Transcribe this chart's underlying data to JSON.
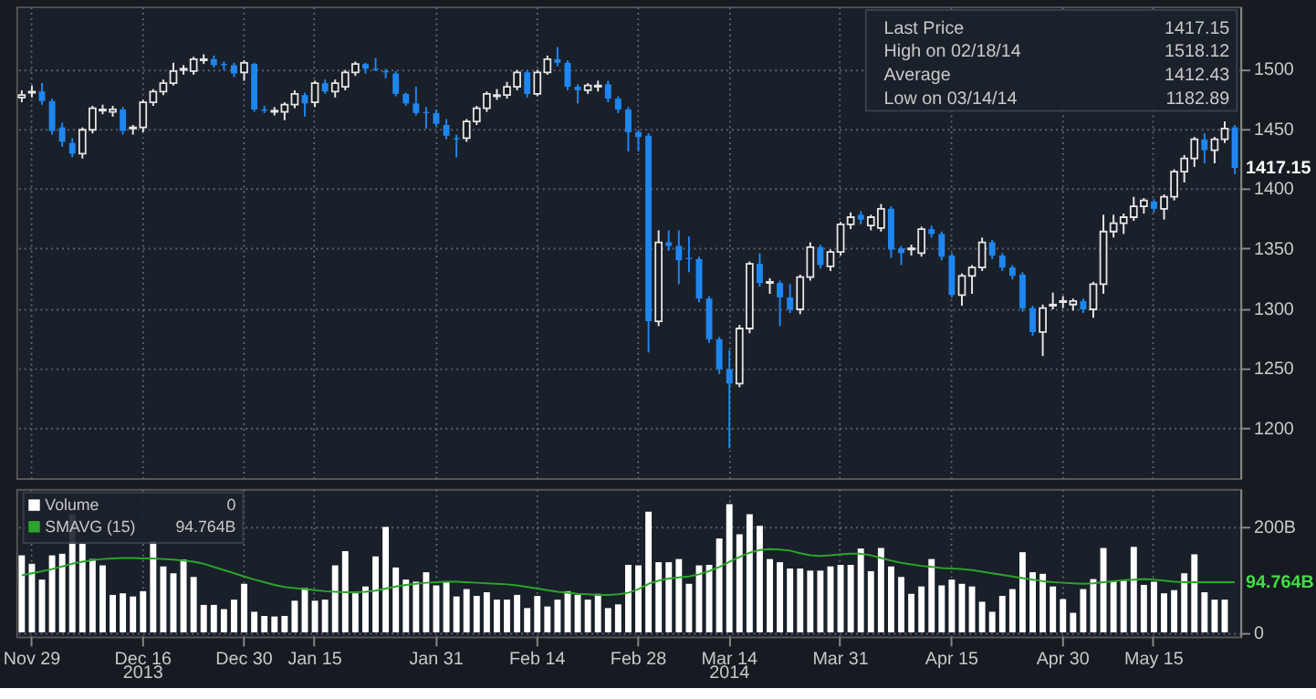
{
  "chart_data": [
    {
      "type": "candlestick",
      "tick_labels": "y",
      "grid": true,
      "colors": [
        "#e6e6e6",
        "#e6e6e6",
        "#1f86f0",
        "#1f86f0",
        "#1f86f0",
        "#1f86f0",
        "#e6e6e6",
        "#e6e6e6",
        "#e6e6e6",
        "#e6e6e6",
        "#1f86f0",
        "#e6e6e6",
        "#e6e6e6",
        "#e6e6e6",
        "#e6e6e6",
        "#e6e6e6",
        "#e6e6e6",
        "#e6e6e6",
        "#e6e6e6",
        "#1f86f0",
        "#1f86f0",
        "#1f86f0",
        "#e6e6e6",
        "#1f86f0",
        "#1f86f0",
        "#e6e6e6",
        "#e6e6e6",
        "#e6e6e6",
        "#1f86f0",
        "#e6e6e6",
        "#1f86f0",
        "#e6e6e6",
        "#e6e6e6",
        "#e6e6e6",
        "#1f86f0",
        "#1f86f0",
        "#1f86f0",
        "#1f86f0",
        "#1f86f0",
        "#1f86f0",
        "#1f86f0",
        "#1f86f0",
        "#1f86f0",
        "#1f86f0",
        "#e6e6e6",
        "#e6e6e6",
        "#e6e6e6",
        "#e6e6e6",
        "#e6e6e6",
        "#e6e6e6",
        "#1f86f0",
        "#e6e6e6",
        "#e6e6e6",
        "#1f86f0",
        "#1f86f0",
        "#1f86f0",
        "#e6e6e6",
        "#e6e6e6",
        "#1f86f0",
        "#1f86f0",
        "#1f86f0",
        "#1f86f0",
        "#1f86f0",
        "#e6e6e6",
        "#1f86f0",
        "#1f86f0",
        "#1f86f0",
        "#1f86f0",
        "#1f86f0",
        "#1f86f0",
        "#1f86f0",
        "#e6e6e6",
        "#e6e6e6",
        "#1f86f0",
        "#e6e6e6",
        "#1f86f0",
        "#1f86f0",
        "#e6e6e6",
        "#e6e6e6",
        "#1f86f0",
        "#e6e6e6",
        "#e6e6e6",
        "#e6e6e6",
        "#1f86f0",
        "#e6e6e6",
        "#e6e6e6",
        "#1f86f0",
        "#1f86f0",
        "#e6e6e6",
        "#e6e6e6",
        "#1f86f0",
        "#1f86f0",
        "#1f86f0",
        "#e6e6e6",
        "#e6e6e6",
        "#e6e6e6",
        "#1f86f0",
        "#1f86f0",
        "#1f86f0",
        "#1f86f0",
        "#1f86f0",
        "#e6e6e6",
        "#e6e6e6",
        "#e6e6e6",
        "#e6e6e6",
        "#1f86f0",
        "#e6e6e6",
        "#e6e6e6",
        "#e6e6e6",
        "#e6e6e6",
        "#e6e6e6",
        "#e6e6e6",
        "#1f86f0",
        "#e6e6e6",
        "#e6e6e6",
        "#e6e6e6",
        "#e6e6e6",
        "#1f86f0",
        "#e6e6e6",
        "#e6e6e6",
        "#1f86f0"
      ],
      "categories": [
        null,
        null,
        null,
        null,
        null,
        null,
        null,
        null,
        null,
        null,
        null,
        null,
        null,
        null,
        null,
        null,
        null,
        null,
        null,
        null,
        null,
        null,
        null,
        null,
        null,
        null,
        null,
        null,
        null,
        null,
        null,
        null,
        null,
        null,
        null,
        null,
        null,
        null,
        null,
        null,
        null,
        null,
        null,
        null,
        null,
        null,
        null,
        null,
        null,
        null,
        null,
        null,
        null,
        null,
        null,
        null,
        null,
        null,
        null,
        null,
        null,
        null,
        null,
        null,
        null,
        null,
        null,
        null,
        null,
        null,
        null,
        null,
        null,
        null,
        null,
        null,
        null,
        null,
        null,
        null,
        null,
        null,
        null,
        null,
        null,
        null,
        null,
        null,
        null,
        null,
        null,
        null,
        null,
        null,
        null,
        null,
        null,
        null,
        null,
        null,
        null,
        null,
        null,
        null,
        null,
        null,
        null,
        null,
        null,
        null,
        null,
        null,
        null,
        null,
        null,
        null,
        null,
        null,
        null,
        null,
        null
      ],
      "ohlc": [
        [
          1476,
          1482,
          1472,
          1478
        ],
        [
          1480,
          1486,
          1476,
          1481
        ],
        [
          1481,
          1488,
          1470,
          1473
        ],
        [
          1473,
          1475,
          1445,
          1448
        ],
        [
          1451,
          1455,
          1435,
          1439
        ],
        [
          1438,
          1442,
          1426,
          1429
        ],
        [
          1429,
          1451,
          1425,
          1449
        ],
        [
          1449,
          1469,
          1446,
          1467
        ],
        [
          1465,
          1470,
          1462,
          1466
        ],
        [
          1464,
          1469,
          1460,
          1466
        ],
        [
          1466,
          1468,
          1445,
          1448
        ],
        [
          1450,
          1453,
          1445,
          1451
        ],
        [
          1451,
          1474,
          1447,
          1472
        ],
        [
          1472,
          1483,
          1469,
          1481
        ],
        [
          1481,
          1491,
          1478,
          1488
        ],
        [
          1488,
          1505,
          1486,
          1498
        ],
        [
          1499,
          1503,
          1495,
          1500
        ],
        [
          1498,
          1510,
          1495,
          1508
        ],
        [
          1507,
          1512,
          1504,
          1508
        ],
        [
          1508,
          1511,
          1501,
          1503
        ],
        [
          1504,
          1506,
          1499,
          1503
        ],
        [
          1503,
          1505,
          1493,
          1496
        ],
        [
          1497,
          1507,
          1490,
          1505
        ],
        [
          1504,
          1505,
          1464,
          1466
        ],
        [
          1466,
          1469,
          1463,
          1465
        ],
        [
          1464,
          1468,
          1461,
          1465
        ],
        [
          1464,
          1472,
          1457,
          1470
        ],
        [
          1470,
          1482,
          1467,
          1479
        ],
        [
          1478,
          1480,
          1460,
          1471
        ],
        [
          1472,
          1490,
          1468,
          1488
        ],
        [
          1488,
          1491,
          1479,
          1481
        ],
        [
          1481,
          1491,
          1476,
          1488
        ],
        [
          1485,
          1499,
          1482,
          1497
        ],
        [
          1497,
          1506,
          1494,
          1504
        ],
        [
          1504,
          1505,
          1496,
          1500
        ],
        [
          1500,
          1509,
          1498,
          1499
        ],
        [
          1498,
          1500,
          1492,
          1497
        ],
        [
          1496,
          1498,
          1477,
          1479
        ],
        [
          1479,
          1480,
          1469,
          1471
        ],
        [
          1471,
          1485,
          1461,
          1463
        ],
        [
          1464,
          1468,
          1450,
          1463
        ],
        [
          1463,
          1466,
          1452,
          1454
        ],
        [
          1453,
          1458,
          1441,
          1444
        ],
        [
          1442,
          1445,
          1426,
          1441
        ],
        [
          1442,
          1458,
          1439,
          1456
        ],
        [
          1456,
          1469,
          1453,
          1467
        ],
        [
          1467,
          1481,
          1464,
          1479
        ],
        [
          1477,
          1483,
          1474,
          1478
        ],
        [
          1478,
          1489,
          1475,
          1485
        ],
        [
          1485,
          1499,
          1482,
          1497
        ],
        [
          1497,
          1499,
          1476,
          1479
        ],
        [
          1479,
          1499,
          1477,
          1497
        ],
        [
          1497,
          1511,
          1495,
          1508
        ],
        [
          1508,
          1518.12,
          1502,
          1505
        ],
        [
          1505,
          1507,
          1482,
          1485
        ],
        [
          1485,
          1487,
          1471,
          1482
        ],
        [
          1482,
          1488,
          1479,
          1486
        ],
        [
          1485,
          1490,
          1481,
          1486
        ],
        [
          1487,
          1490,
          1472,
          1475
        ],
        [
          1475,
          1477,
          1463,
          1466
        ],
        [
          1466,
          1468,
          1431,
          1447
        ],
        [
          1447,
          1449,
          1431,
          1443
        ],
        [
          1444,
          1446,
          1263,
          1289
        ],
        [
          1289,
          1365,
          1285,
          1355
        ],
        [
          1355,
          1365,
          1348,
          1352
        ],
        [
          1352,
          1365,
          1320,
          1340
        ],
        [
          1342,
          1360,
          1330,
          1341
        ],
        [
          1341,
          1343,
          1305,
          1308
        ],
        [
          1308,
          1310,
          1271,
          1274
        ],
        [
          1274,
          1276,
          1245,
          1249
        ],
        [
          1249,
          1265,
          1182.89,
          1237
        ],
        [
          1237,
          1286,
          1234,
          1283
        ],
        [
          1283,
          1339,
          1279,
          1337
        ],
        [
          1337,
          1346,
          1318,
          1321
        ],
        [
          1321,
          1325,
          1312,
          1322
        ],
        [
          1321,
          1323,
          1285,
          1309
        ],
        [
          1309,
          1320,
          1296,
          1299
        ],
        [
          1299,
          1328,
          1295,
          1326
        ],
        [
          1326,
          1355,
          1323,
          1351
        ],
        [
          1351,
          1353,
          1333,
          1336
        ],
        [
          1335,
          1349,
          1331,
          1347
        ],
        [
          1347,
          1372,
          1344,
          1370
        ],
        [
          1370,
          1380,
          1366,
          1376
        ],
        [
          1378,
          1381,
          1370,
          1374
        ],
        [
          1369,
          1378,
          1365,
          1376
        ],
        [
          1367,
          1387,
          1364,
          1383
        ],
        [
          1383,
          1385,
          1342,
          1349
        ],
        [
          1350,
          1352,
          1336,
          1346
        ],
        [
          1349,
          1353,
          1344,
          1350
        ],
        [
          1346,
          1368,
          1343,
          1366
        ],
        [
          1366,
          1369,
          1359,
          1362
        ],
        [
          1362,
          1364,
          1340,
          1343
        ],
        [
          1344,
          1346,
          1309,
          1311
        ],
        [
          1311,
          1329,
          1302,
          1327
        ],
        [
          1327,
          1336,
          1312,
          1334
        ],
        [
          1334,
          1359,
          1331,
          1355
        ],
        [
          1355,
          1357,
          1341,
          1344
        ],
        [
          1344,
          1346,
          1331,
          1334
        ],
        [
          1334,
          1336,
          1324,
          1327
        ],
        [
          1328,
          1330,
          1297,
          1300
        ],
        [
          1300,
          1302,
          1277,
          1280
        ],
        [
          1280,
          1303,
          1260,
          1300
        ],
        [
          1302,
          1313,
          1299,
          1303
        ],
        [
          1305,
          1310,
          1300,
          1306
        ],
        [
          1303,
          1308,
          1298,
          1306
        ],
        [
          1306,
          1308,
          1296,
          1299
        ],
        [
          1299,
          1322,
          1292,
          1320
        ],
        [
          1320,
          1378,
          1312,
          1364
        ],
        [
          1364,
          1378,
          1359,
          1371
        ],
        [
          1371,
          1379,
          1362,
          1376
        ],
        [
          1376,
          1393,
          1373,
          1385
        ],
        [
          1385,
          1392,
          1379,
          1390
        ],
        [
          1389,
          1391,
          1380,
          1383
        ],
        [
          1383,
          1395,
          1374,
          1393
        ],
        [
          1393,
          1416,
          1390,
          1414
        ],
        [
          1414,
          1428,
          1405,
          1425
        ],
        [
          1425,
          1443,
          1418,
          1441
        ],
        [
          1441,
          1446,
          1421,
          1432
        ],
        [
          1432,
          1443,
          1421,
          1441
        ],
        [
          1441,
          1456,
          1438,
          1450
        ],
        [
          1451,
          1453,
          1412,
          1417.15
        ]
      ],
      "ylim": [
        1158,
        1552
      ],
      "yticks": [
        1200,
        1250,
        1300,
        1350,
        1400,
        1450,
        1500
      ],
      "annotations": [
        "Last Price",
        "1417.15",
        "High on 02/18/14",
        "1518.12",
        "Average",
        "1412.43",
        "Low on 03/14/14",
        "1182.89",
        "1417.15"
      ]
    },
    {
      "type": "bar",
      "grid": true,
      "legend": "top left",
      "categories": [
        null,
        "Nov 29",
        null,
        null,
        null,
        null,
        null,
        null,
        null,
        null,
        null,
        null,
        "Dec 16",
        null,
        null,
        null,
        null,
        null,
        null,
        null,
        null,
        null,
        "Dec 30",
        null,
        null,
        null,
        null,
        null,
        null,
        "Jan 15",
        null,
        null,
        null,
        null,
        null,
        null,
        null,
        null,
        null,
        null,
        null,
        "Jan 31",
        null,
        null,
        null,
        null,
        null,
        null,
        null,
        null,
        null,
        "Feb 14",
        null,
        null,
        null,
        null,
        null,
        null,
        null,
        null,
        null,
        "Feb 28",
        null,
        null,
        null,
        null,
        null,
        null,
        null,
        null,
        "Mar 14",
        null,
        null,
        null,
        null,
        null,
        null,
        null,
        null,
        null,
        null,
        "Mar 31",
        null,
        null,
        null,
        null,
        null,
        null,
        null,
        null,
        null,
        null,
        "Apr 15",
        null,
        null,
        null,
        null,
        null,
        null,
        null,
        null,
        null,
        null,
        "Apr 30",
        null,
        null,
        null,
        null,
        null,
        null,
        null,
        null,
        "May 15",
        null,
        null,
        null,
        null,
        null,
        null,
        null,
        null
      ],
      "series": [
        {
          "name": "Volume",
          "type": "bar",
          "color": "#ffffff",
          "values": [
            146,
            130,
            100,
            146,
            149,
            224,
            168,
            139,
            127,
            71,
            74,
            68,
            78,
            173,
            125,
            112,
            138,
            105,
            52,
            52,
            44,
            62,
            92,
            39,
            31,
            30,
            31,
            60,
            84,
            60,
            62,
            127,
            154,
            74,
            87,
            144,
            200,
            123,
            100,
            96,
            114,
            89,
            95,
            68,
            82,
            69,
            76,
            62,
            62,
            71,
            46,
            69,
            49,
            62,
            78,
            71,
            62,
            73,
            46,
            53,
            128,
            127,
            229,
            133,
            133,
            139,
            92,
            127,
            128,
            178,
            243,
            186,
            224,
            202,
            139,
            133,
            121,
            121,
            117,
            117,
            125,
            128,
            128,
            159,
            116,
            160,
            125,
            105,
            73,
            87,
            139,
            89,
            100,
            92,
            87,
            58,
            39,
            69,
            82,
            152,
            114,
            111,
            87,
            63,
            37,
            82,
            101,
            160,
            98,
            98,
            162,
            90,
            96,
            74,
            80,
            112,
            148,
            76,
            62,
            62,
            0
          ]
        },
        {
          "name": "SMAVG (15)",
          "type": "line",
          "color": "#2aa52a",
          "values": [
            108,
            112,
            116,
            120,
            125,
            130,
            134,
            137,
            139,
            140,
            141,
            141,
            140,
            140,
            139,
            138,
            136,
            134,
            130,
            124,
            118,
            112,
            106,
            100,
            95,
            90,
            86,
            84,
            82,
            80,
            78,
            77,
            76,
            76,
            77,
            79,
            83,
            87,
            90,
            92,
            94,
            95,
            96,
            96,
            95,
            94,
            93,
            92,
            91,
            89,
            86,
            83,
            80,
            77,
            75,
            73,
            72,
            71,
            71,
            72,
            75,
            82,
            92,
            98,
            102,
            104,
            106,
            110,
            116,
            124,
            134,
            143,
            151,
            156,
            158,
            157,
            155,
            150,
            146,
            145,
            146,
            148,
            149,
            149,
            146,
            141,
            136,
            132,
            129,
            126,
            124,
            122,
            121,
            120,
            118,
            115,
            112,
            109,
            106,
            103,
            100,
            97,
            95,
            94,
            93,
            92,
            93,
            95,
            97,
            99,
            100,
            101,
            100,
            98,
            96,
            95,
            95,
            95,
            95,
            95,
            95
          ]
        }
      ],
      "ylim": [
        -8,
        272
      ],
      "yticks": [
        0,
        {
          "value": 200,
          "label": "200B"
        }
      ],
      "annotations": [
        "0",
        "94.764B",
        "94.764B",
        "2013",
        "2014"
      ]
    }
  ]
}
